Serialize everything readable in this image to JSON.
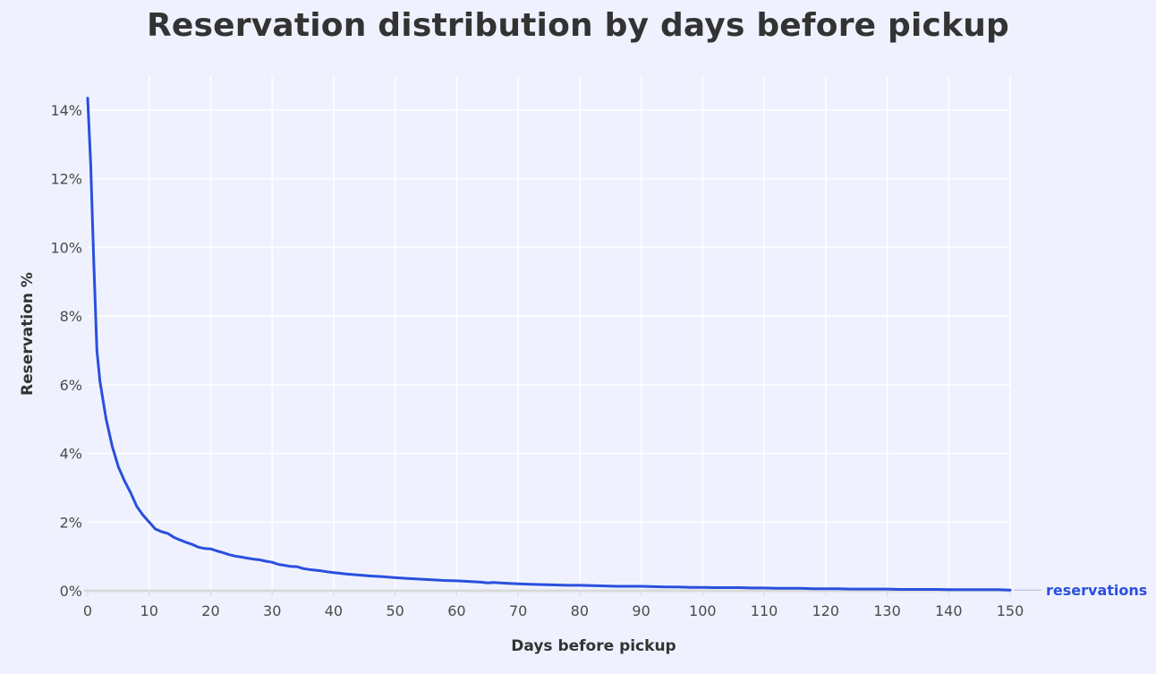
{
  "chart_data": {
    "type": "line",
    "title": "Reservation distribution by days before pickup",
    "xlabel": "Days before pickup",
    "ylabel": "Reservation %",
    "xlim": [
      0,
      150
    ],
    "ylim": [
      0,
      14.5
    ],
    "x_ticks": [
      0,
      10,
      20,
      30,
      40,
      50,
      60,
      70,
      80,
      90,
      100,
      110,
      120,
      130,
      140,
      150
    ],
    "x_tick_labels": [
      "0",
      "10",
      "20",
      "30",
      "40",
      "50",
      "60",
      "70",
      "80",
      "90",
      "100",
      "110",
      "120",
      "130",
      "140",
      "150"
    ],
    "y_ticks": [
      0,
      2,
      4,
      6,
      8,
      10,
      12,
      14
    ],
    "y_tick_labels": [
      "0%",
      "2%",
      "4%",
      "6%",
      "8%",
      "10%",
      "12%",
      "14%"
    ],
    "grid": true,
    "series": [
      {
        "name": "reservations",
        "color": "#2a4fde",
        "x": [
          0,
          0.5,
          1,
          1.5,
          2,
          3,
          4,
          5,
          6,
          7,
          8,
          9,
          10,
          11,
          12,
          13,
          14,
          15,
          16,
          17,
          18,
          19,
          20,
          21,
          22,
          23,
          24,
          25,
          26,
          27,
          28,
          29,
          30,
          31,
          32,
          33,
          34,
          35,
          36,
          37,
          38,
          39,
          40,
          42,
          44,
          46,
          48,
          50,
          52,
          54,
          56,
          58,
          60,
          62,
          64,
          65,
          66,
          68,
          70,
          72,
          74,
          76,
          78,
          80,
          82,
          84,
          86,
          88,
          90,
          92,
          94,
          96,
          98,
          100,
          102,
          104,
          106,
          108,
          110,
          112,
          114,
          116,
          118,
          120,
          122,
          124,
          126,
          128,
          130,
          132,
          134,
          136,
          138,
          140,
          142,
          144,
          146,
          148,
          150
        ],
        "values": [
          14.35,
          12.4,
          9.5,
          7.0,
          6.1,
          5.0,
          4.2,
          3.6,
          3.2,
          2.85,
          2.45,
          2.2,
          2.0,
          1.8,
          1.72,
          1.67,
          1.56,
          1.48,
          1.41,
          1.35,
          1.27,
          1.23,
          1.22,
          1.16,
          1.11,
          1.05,
          1.01,
          0.98,
          0.95,
          0.92,
          0.9,
          0.86,
          0.83,
          0.77,
          0.74,
          0.71,
          0.7,
          0.65,
          0.62,
          0.6,
          0.58,
          0.55,
          0.53,
          0.49,
          0.46,
          0.43,
          0.41,
          0.38,
          0.36,
          0.34,
          0.32,
          0.3,
          0.29,
          0.27,
          0.25,
          0.23,
          0.24,
          0.22,
          0.2,
          0.19,
          0.18,
          0.17,
          0.16,
          0.16,
          0.15,
          0.14,
          0.13,
          0.13,
          0.13,
          0.12,
          0.11,
          0.11,
          0.1,
          0.1,
          0.09,
          0.09,
          0.09,
          0.08,
          0.08,
          0.07,
          0.07,
          0.07,
          0.06,
          0.06,
          0.06,
          0.05,
          0.05,
          0.05,
          0.05,
          0.04,
          0.04,
          0.04,
          0.04,
          0.03,
          0.03,
          0.03,
          0.03,
          0.03,
          0.02
        ]
      }
    ]
  }
}
